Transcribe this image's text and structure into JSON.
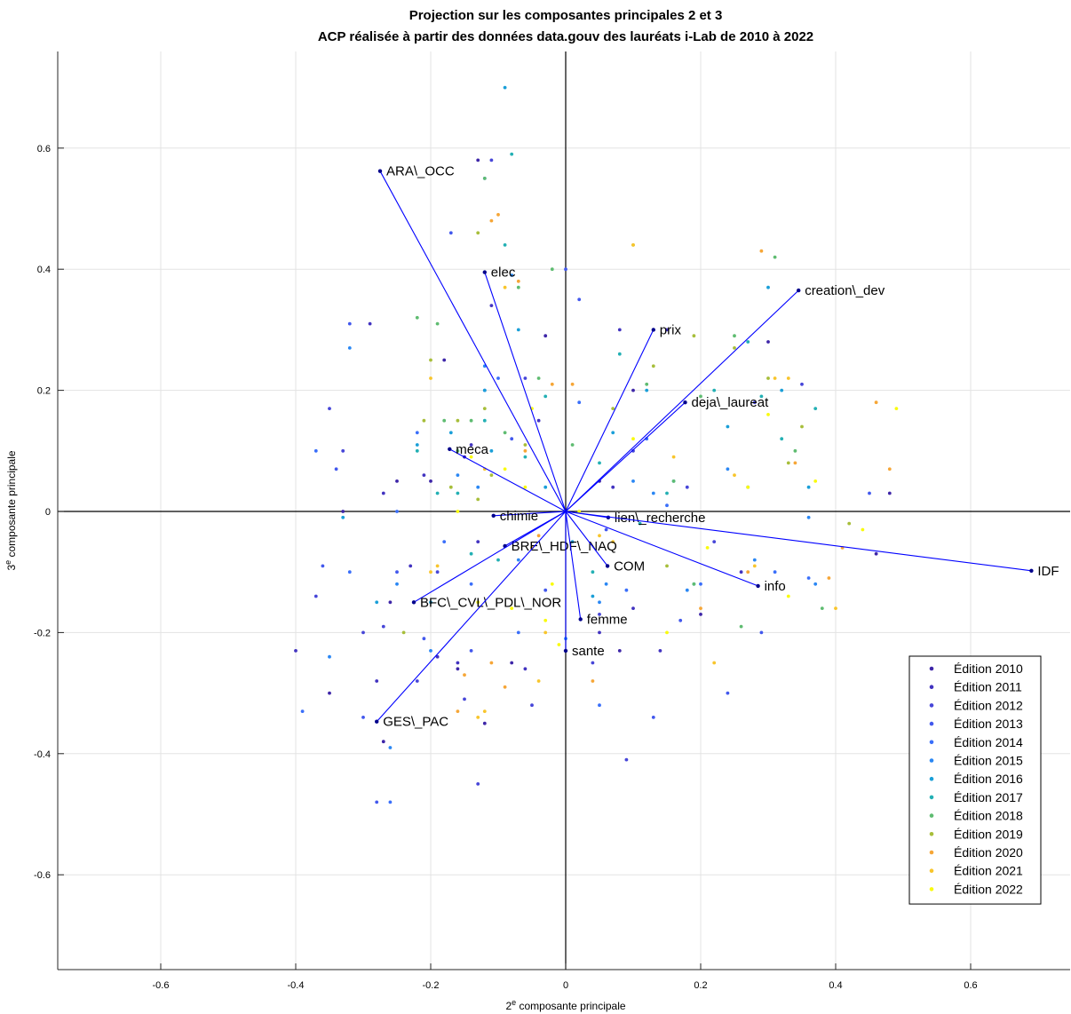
{
  "chart_data": {
    "type": "scatter",
    "title": "Projection sur les composantes principales 2 et 3",
    "subtitle": "ACP réalisée à partir des données data.gouv des lauréats i-Lab de 2010 à 2022",
    "xlabel": "2",
    "xlabel_sup": "e",
    "xlabel_rest": " composante principale",
    "ylabel": "3",
    "ylabel_sup": "e",
    "ylabel_rest": " composante principale",
    "xlim": [
      -0.75,
      0.75
    ],
    "ylim": [
      -0.75,
      0.75
    ],
    "xticks": [
      -0.6,
      -0.4,
      -0.2,
      0,
      0.2,
      0.4,
      0.6
    ],
    "yticks": [
      -0.6,
      -0.4,
      -0.2,
      0,
      0.2,
      0.4,
      0.6
    ],
    "grid": true,
    "legend_position": "bottom-right",
    "vector_color": "#0000ff",
    "vectors": [
      {
        "label": "ARA\\_OCC",
        "x": -0.275,
        "y": 0.562
      },
      {
        "label": "elec",
        "x": -0.12,
        "y": 0.395
      },
      {
        "label": "creation\\_dev",
        "x": 0.345,
        "y": 0.365
      },
      {
        "label": "prix",
        "x": 0.13,
        "y": 0.3
      },
      {
        "label": "deja\\_laureat",
        "x": 0.177,
        "y": 0.18
      },
      {
        "label": "meca",
        "x": -0.172,
        "y": 0.103
      },
      {
        "label": "chimie",
        "x": -0.107,
        "y": -0.007
      },
      {
        "label": "lien\\_recherche",
        "x": 0.063,
        "y": -0.01
      },
      {
        "label": "BRE\\_HDF\\_NAQ",
        "x": -0.09,
        "y": -0.057
      },
      {
        "label": "COM",
        "x": 0.062,
        "y": -0.09
      },
      {
        "label": "IDF",
        "x": 0.69,
        "y": -0.098
      },
      {
        "label": "info",
        "x": 0.285,
        "y": -0.123
      },
      {
        "label": "BFC\\_CVL\\_PDL\\_NOR",
        "x": -0.225,
        "y": -0.15
      },
      {
        "label": "femme",
        "x": 0.022,
        "y": -0.178
      },
      {
        "label": "sante",
        "x": 0.0,
        "y": -0.23
      },
      {
        "label": "GES\\_PAC",
        "x": -0.28,
        "y": -0.347
      }
    ],
    "series": [
      {
        "name": "Édition 2010",
        "color": "#3e26a8",
        "points": [
          [
            -0.15,
            0.09
          ],
          [
            -0.13,
            0.58
          ],
          [
            -0.25,
            0.05
          ],
          [
            0.3,
            0.28
          ],
          [
            -0.03,
            0.29
          ],
          [
            -0.26,
            -0.15
          ],
          [
            0.46,
            -0.07
          ],
          [
            -0.33,
            0.0
          ],
          [
            -0.12,
            -0.35
          ],
          [
            0.1,
            0.2
          ],
          [
            -0.2,
            0.05
          ],
          [
            -0.35,
            -0.3
          ],
          [
            0.05,
            0.05
          ],
          [
            -0.08,
            -0.25
          ],
          [
            -0.27,
            -0.38
          ],
          [
            0.2,
            -0.17
          ],
          [
            -0.16,
            -0.26
          ],
          [
            0.48,
            0.03
          ],
          [
            0.08,
            -0.23
          ],
          [
            -0.18,
            0.25
          ]
        ]
      },
      {
        "name": "Édition 2011",
        "color": "#4233c0",
        "points": [
          [
            -0.11,
            0.34
          ],
          [
            -0.29,
            0.31
          ],
          [
            0.08,
            0.3
          ],
          [
            -0.21,
            0.06
          ],
          [
            -0.23,
            -0.09
          ],
          [
            0.05,
            -0.2
          ],
          [
            -0.14,
            0.11
          ],
          [
            0.26,
            -0.1
          ],
          [
            -0.4,
            -0.23
          ],
          [
            -0.06,
            -0.26
          ],
          [
            0.15,
            0.3
          ],
          [
            -0.16,
            -0.25
          ],
          [
            -0.28,
            -0.28
          ],
          [
            0.14,
            -0.23
          ],
          [
            -0.13,
            -0.05
          ],
          [
            0.1,
            -0.16
          ],
          [
            -0.27,
            0.03
          ],
          [
            -0.04,
            0.15
          ],
          [
            0.07,
            0.04
          ],
          [
            -0.19,
            -0.24
          ]
        ]
      },
      {
        "name": "Édition 2012",
        "color": "#4746d8",
        "points": [
          [
            -0.11,
            0.58
          ],
          [
            -0.35,
            0.17
          ],
          [
            0.05,
            -0.17
          ],
          [
            -0.19,
            -0.1
          ],
          [
            0.28,
            0.18
          ],
          [
            -0.3,
            -0.2
          ],
          [
            0.09,
            -0.41
          ],
          [
            -0.13,
            -0.45
          ],
          [
            -0.27,
            -0.19
          ],
          [
            0.22,
            -0.05
          ],
          [
            -0.06,
            0.22
          ],
          [
            -0.33,
            0.1
          ],
          [
            0.04,
            -0.25
          ],
          [
            -0.15,
            -0.31
          ],
          [
            0.35,
            0.21
          ],
          [
            -0.22,
            -0.28
          ],
          [
            0.1,
            0.1
          ],
          [
            -0.05,
            -0.32
          ],
          [
            0.18,
            0.04
          ],
          [
            -0.37,
            -0.14
          ]
        ]
      },
      {
        "name": "Édition 2013",
        "color": "#4258ed",
        "points": [
          [
            -0.17,
            0.46
          ],
          [
            -0.32,
            0.31
          ],
          [
            0.24,
            -0.3
          ],
          [
            -0.34,
            0.07
          ],
          [
            0.0,
            0.4
          ],
          [
            -0.28,
            -0.48
          ],
          [
            0.13,
            -0.34
          ],
          [
            -0.21,
            -0.21
          ],
          [
            0.29,
            -0.2
          ],
          [
            -0.08,
            0.12
          ],
          [
            -0.36,
            -0.09
          ],
          [
            0.06,
            -0.03
          ],
          [
            -0.12,
            0.2
          ],
          [
            -0.25,
            -0.1
          ],
          [
            0.45,
            0.03
          ],
          [
            -0.03,
            -0.13
          ],
          [
            0.17,
            -0.18
          ],
          [
            -0.3,
            -0.34
          ],
          [
            0.02,
            0.35
          ],
          [
            -0.14,
            -0.23
          ]
        ]
      },
      {
        "name": "Édition 2014",
        "color": "#3a6ffa",
        "points": [
          [
            -0.12,
            0.55
          ],
          [
            -0.37,
            0.1
          ],
          [
            0.31,
            -0.1
          ],
          [
            -0.25,
            0.0
          ],
          [
            0.02,
            0.18
          ],
          [
            -0.26,
            -0.48
          ],
          [
            0.2,
            -0.12
          ],
          [
            -0.18,
            -0.05
          ],
          [
            0.27,
            0.04
          ],
          [
            -0.39,
            -0.33
          ],
          [
            0.09,
            -0.13
          ],
          [
            -0.1,
            0.22
          ],
          [
            -0.32,
            -0.1
          ],
          [
            0.15,
            0.01
          ],
          [
            -0.07,
            -0.2
          ],
          [
            0.36,
            -0.11
          ],
          [
            -0.22,
            0.13
          ],
          [
            0.05,
            -0.32
          ],
          [
            -0.14,
            -0.12
          ],
          [
            0.12,
            0.12
          ]
        ]
      },
      {
        "name": "Édition 2015",
        "color": "#2a87f4",
        "points": [
          [
            -0.08,
            0.39
          ],
          [
            -0.32,
            0.27
          ],
          [
            0.36,
            -0.01
          ],
          [
            -0.26,
            -0.39
          ],
          [
            0.24,
            0.07
          ],
          [
            -0.12,
            0.24
          ],
          [
            0.06,
            -0.12
          ],
          [
            -0.35,
            -0.24
          ],
          [
            0.18,
            -0.13
          ],
          [
            -0.07,
            -0.08
          ],
          [
            0.28,
            -0.08
          ],
          [
            -0.2,
            -0.23
          ],
          [
            0.13,
            0.03
          ],
          [
            -0.13,
            0.04
          ],
          [
            0.05,
            -0.15
          ],
          [
            -0.25,
            -0.12
          ],
          [
            0.37,
            -0.12
          ],
          [
            -0.16,
            0.06
          ],
          [
            0.0,
            -0.21
          ],
          [
            0.1,
            0.05
          ]
        ]
      },
      {
        "name": "Édition 2016",
        "color": "#1a9fd8",
        "points": [
          [
            -0.09,
            0.7
          ],
          [
            -0.12,
            0.2
          ],
          [
            0.32,
            0.2
          ],
          [
            -0.22,
            0.11
          ],
          [
            0.3,
            0.37
          ],
          [
            -0.33,
            -0.01
          ],
          [
            0.04,
            -0.14
          ],
          [
            -0.11,
            0.1
          ],
          [
            0.16,
            0.05
          ],
          [
            -0.28,
            -0.15
          ],
          [
            0.07,
            0.13
          ],
          [
            -0.07,
            0.3
          ],
          [
            0.24,
            0.14
          ],
          [
            -0.17,
            0.13
          ],
          [
            0.19,
            -0.12
          ],
          [
            -0.03,
            0.04
          ],
          [
            0.12,
            0.2
          ],
          [
            -0.2,
            -0.15
          ],
          [
            0.36,
            0.04
          ],
          [
            0.01,
            -0.05
          ]
        ]
      },
      {
        "name": "Édition 2017",
        "color": "#23b0b4",
        "points": [
          [
            -0.08,
            0.59
          ],
          [
            -0.09,
            0.44
          ],
          [
            0.27,
            0.28
          ],
          [
            -0.12,
            0.15
          ],
          [
            0.22,
            0.2
          ],
          [
            -0.03,
            0.19
          ],
          [
            0.05,
            0.08
          ],
          [
            -0.16,
            0.03
          ],
          [
            0.29,
            0.19
          ],
          [
            -0.19,
            0.03
          ],
          [
            0.15,
            0.03
          ],
          [
            -0.06,
            0.09
          ],
          [
            0.37,
            0.17
          ],
          [
            -0.22,
            0.1
          ],
          [
            0.11,
            -0.02
          ],
          [
            -0.14,
            -0.07
          ],
          [
            0.08,
            0.26
          ],
          [
            -0.1,
            -0.08
          ],
          [
            0.32,
            0.12
          ],
          [
            0.04,
            -0.1
          ]
        ]
      },
      {
        "name": "Édition 2018",
        "color": "#5fbc71",
        "points": [
          [
            -0.12,
            0.55
          ],
          [
            -0.22,
            0.32
          ],
          [
            0.31,
            0.42
          ],
          [
            -0.19,
            0.31
          ],
          [
            0.25,
            0.29
          ],
          [
            -0.16,
            0.1
          ],
          [
            0.2,
            0.19
          ],
          [
            -0.18,
            0.15
          ],
          [
            0.38,
            -0.16
          ],
          [
            -0.14,
            0.15
          ],
          [
            0.16,
            0.05
          ],
          [
            -0.07,
            0.37
          ],
          [
            0.19,
            -0.12
          ],
          [
            -0.02,
            0.4
          ],
          [
            0.26,
            -0.19
          ],
          [
            -0.04,
            0.22
          ],
          [
            0.01,
            0.11
          ],
          [
            -0.09,
            0.13
          ],
          [
            0.34,
            0.1
          ],
          [
            0.12,
            0.21
          ]
        ]
      },
      {
        "name": "Édition 2019",
        "color": "#a7be3a",
        "points": [
          [
            -0.2,
            0.25
          ],
          [
            -0.13,
            0.46
          ],
          [
            0.1,
            0.44
          ],
          [
            -0.21,
            0.15
          ],
          [
            0.13,
            0.24
          ],
          [
            -0.16,
            0.15
          ],
          [
            0.35,
            0.14
          ],
          [
            -0.12,
            0.17
          ],
          [
            0.3,
            0.22
          ],
          [
            -0.24,
            -0.2
          ],
          [
            0.25,
            0.27
          ],
          [
            -0.17,
            0.04
          ],
          [
            0.19,
            0.29
          ],
          [
            -0.11,
            0.06
          ],
          [
            0.15,
            -0.09
          ],
          [
            -0.06,
            0.11
          ],
          [
            0.33,
            0.08
          ],
          [
            -0.13,
            0.02
          ],
          [
            0.42,
            -0.02
          ],
          [
            0.07,
            0.17
          ]
        ]
      },
      {
        "name": "Édition 2020",
        "color": "#f6a637",
        "points": [
          [
            -0.1,
            0.49
          ],
          [
            -0.07,
            0.38
          ],
          [
            0.29,
            0.43
          ],
          [
            -0.11,
            0.48
          ],
          [
            0.46,
            0.18
          ],
          [
            -0.16,
            -0.33
          ],
          [
            0.41,
            -0.06
          ],
          [
            -0.15,
            -0.27
          ],
          [
            0.39,
            -0.11
          ],
          [
            -0.11,
            -0.25
          ],
          [
            0.48,
            0.07
          ],
          [
            -0.02,
            0.21
          ],
          [
            0.27,
            -0.1
          ],
          [
            -0.06,
            0.1
          ],
          [
            0.2,
            -0.16
          ],
          [
            -0.04,
            -0.04
          ],
          [
            0.34,
            0.08
          ],
          [
            -0.09,
            -0.29
          ],
          [
            0.04,
            -0.28
          ],
          [
            0.01,
            0.21
          ]
        ]
      },
      {
        "name": "Édition 2021",
        "color": "#f8c52c",
        "points": [
          [
            -0.2,
            0.22
          ],
          [
            -0.13,
            -0.34
          ],
          [
            0.1,
            0.44
          ],
          [
            -0.12,
            -0.33
          ],
          [
            0.31,
            0.22
          ],
          [
            -0.19,
            -0.09
          ],
          [
            0.22,
            -0.25
          ],
          [
            -0.09,
            0.37
          ],
          [
            0.33,
            0.22
          ],
          [
            -0.2,
            -0.1
          ],
          [
            0.28,
            -0.09
          ],
          [
            -0.04,
            -0.28
          ],
          [
            0.4,
            -0.16
          ],
          [
            -0.05,
            -0.06
          ],
          [
            0.05,
            -0.04
          ],
          [
            -0.12,
            0.07
          ],
          [
            0.16,
            0.09
          ],
          [
            -0.03,
            -0.2
          ],
          [
            0.25,
            0.06
          ],
          [
            0.07,
            -0.05
          ]
        ]
      },
      {
        "name": "Édition 2022",
        "color": "#f9fb0e",
        "points": [
          [
            -0.09,
            0.07
          ],
          [
            -0.03,
            -0.18
          ],
          [
            0.49,
            0.17
          ],
          [
            -0.13,
            -0.15
          ],
          [
            0.3,
            0.16
          ],
          [
            -0.02,
            -0.12
          ],
          [
            0.15,
            -0.2
          ],
          [
            -0.06,
            0.04
          ],
          [
            0.37,
            0.05
          ],
          [
            -0.01,
            -0.22
          ],
          [
            0.21,
            -0.06
          ],
          [
            -0.16,
            0.0
          ],
          [
            0.44,
            -0.03
          ],
          [
            -0.08,
            -0.16
          ],
          [
            0.1,
            0.12
          ],
          [
            -0.14,
            0.09
          ],
          [
            0.27,
            0.04
          ],
          [
            0.02,
            0.0
          ],
          [
            0.33,
            -0.14
          ],
          [
            -0.05,
            0.17
          ]
        ]
      }
    ]
  }
}
